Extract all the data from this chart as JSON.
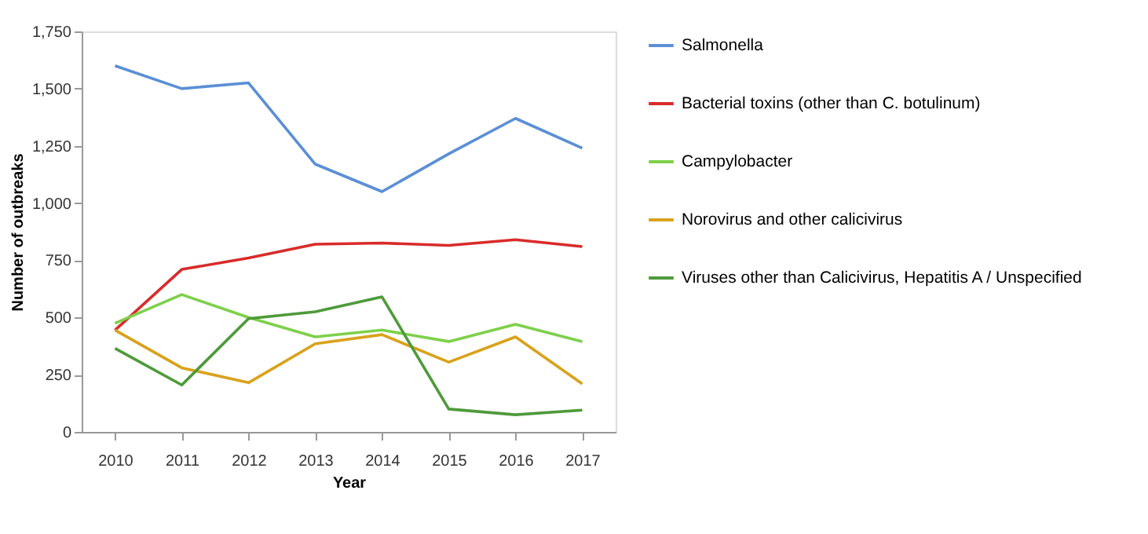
{
  "chart_data": {
    "type": "line",
    "xlabel": "Year",
    "ylabel": "Number of outbreaks",
    "categories": [
      "2010",
      "2011",
      "2012",
      "2013",
      "2014",
      "2015",
      "2016",
      "2017"
    ],
    "series": [
      {
        "name": "Salmonella",
        "color": "#5b8fd6",
        "values": [
          1600,
          1500,
          1525,
          1170,
          1050,
          1215,
          1370,
          1240
        ]
      },
      {
        "name": "Bacterial toxins (other than C. botulinum)",
        "color": "#d92b2b",
        "values": [
          445,
          710,
          760,
          820,
          825,
          815,
          840,
          810
        ]
      },
      {
        "name": "Campylobacter",
        "color": "#7ed04a",
        "values": [
          475,
          600,
          500,
          415,
          445,
          395,
          470,
          395
        ]
      },
      {
        "name": "Norovirus and other calicivirus",
        "color": "#d9a21b",
        "values": [
          445,
          280,
          215,
          385,
          425,
          305,
          415,
          210
        ]
      },
      {
        "name": "Viruses other than Calicivirus, Hepatitis A / Unspecified",
        "color": "#4e9a3a",
        "values": [
          365,
          205,
          495,
          525,
          590,
          100,
          75,
          95
        ]
      }
    ],
    "ylim": [
      0,
      1750
    ],
    "yticks": [
      0,
      250,
      500,
      750,
      {
        "value": 1000,
        "label": "1,000"
      },
      {
        "value": 1250,
        "label": "1,250"
      },
      {
        "value": 1500,
        "label": "1,500"
      },
      {
        "value": 1750,
        "label": "1,750"
      }
    ],
    "grid": false,
    "legend": "right",
    "marker": "none",
    "line_style": "solid"
  }
}
